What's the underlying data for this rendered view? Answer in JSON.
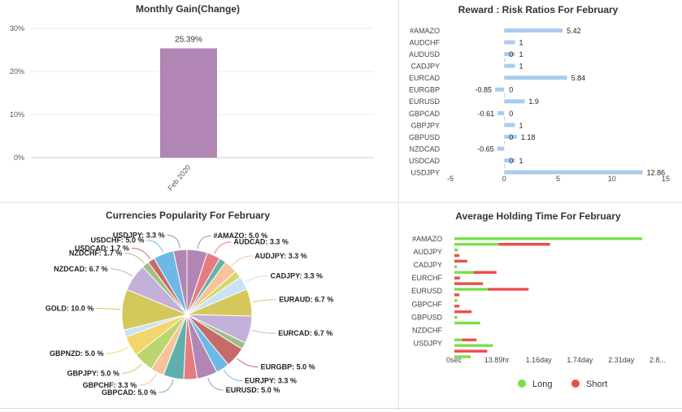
{
  "chart_data": [
    {
      "id": "monthly",
      "type": "bar",
      "title": "Monthly Gain(Change)",
      "categories": [
        "Feb 2020"
      ],
      "values": [
        25.39
      ],
      "value_labels": [
        "25.39%"
      ],
      "y_ticks": [
        "0%",
        "10%",
        "20%",
        "30%"
      ],
      "ylim": [
        0,
        30
      ],
      "grid": true,
      "colors": {
        "bar": "#b286b4",
        "grid": "#e8e8e8"
      }
    },
    {
      "id": "reward",
      "type": "bar",
      "orientation": "horizontal",
      "title": "Reward : Risk Ratios For February",
      "categories": [
        "#AMAZO",
        "AUDCHF",
        "AUDUSD",
        "CADJPY",
        "EURCAD",
        "EURGBP",
        "EURUSD",
        "GBPCAD",
        "GBPJPY",
        "GBPUSD",
        "NZDCAD",
        "USDCAD",
        "USDJPY"
      ],
      "series": [
        {
          "values": [
            5.42,
            1,
            1,
            1,
            5.84,
            -0.85,
            1.9,
            -0.61,
            1,
            1.18,
            -0.65,
            1,
            12.86
          ],
          "labels": [
            "5.42",
            "1",
            "1",
            "1",
            "5.84",
            "-0.85",
            "1.9",
            "-0.61",
            "1",
            "1.18",
            "-0.65",
            "1",
            "12.86"
          ]
        },
        {
          "values": [
            null,
            null,
            0,
            null,
            null,
            0,
            null,
            0,
            null,
            0,
            null,
            0,
            null
          ],
          "labels": [
            "",
            "",
            "0",
            "",
            "",
            "0",
            "",
            "0",
            "",
            "0",
            "",
            "0",
            ""
          ]
        }
      ],
      "x_ticks": [
        "-5",
        "0",
        "5",
        "10",
        "15"
      ],
      "xlim": [
        -5,
        15
      ],
      "colors": {
        "bar": "#a8cdee"
      }
    },
    {
      "id": "popularity",
      "type": "pie",
      "title": "Currencies Popularity For February",
      "slices": [
        {
          "label": "#AMAZO: 5.0 %",
          "value": 5.0,
          "color": "#b286b4"
        },
        {
          "label": "AUDCAD: 3.3 %",
          "value": 3.3,
          "color": "#e57c80"
        },
        {
          "label": "",
          "value": 1.7,
          "color": "#66b3a7"
        },
        {
          "label": "AUDJPY: 3.3 %",
          "value": 3.3,
          "color": "#f8c39b"
        },
        {
          "label": "",
          "value": 1.7,
          "color": "#d4d86a"
        },
        {
          "label": "CADJPY: 3.3 %",
          "value": 3.3,
          "color": "#c8e2f6"
        },
        {
          "label": "EURAUD: 6.7 %",
          "value": 6.7,
          "color": "#d4c85c"
        },
        {
          "label": "EURCAD: 6.7 %",
          "value": 6.7,
          "color": "#c2b0d8"
        },
        {
          "label": "",
          "value": 1.7,
          "color": "#9fbf86"
        },
        {
          "label": "EURGBP: 5.0 %",
          "value": 5.0,
          "color": "#c76a6a"
        },
        {
          "label": "EURJPY: 3.3 %",
          "value": 3.3,
          "color": "#6cb9e6"
        },
        {
          "label": "EURUSD: 5.0 %",
          "value": 5.0,
          "color": "#b286b4"
        },
        {
          "label": "",
          "value": 3.3,
          "color": "#e57c80"
        },
        {
          "label": "GBPCAD: 5.0 %",
          "value": 5.0,
          "color": "#5fb0ad"
        },
        {
          "label": "GBPCHF: 3.3 %",
          "value": 3.3,
          "color": "#f8c39b"
        },
        {
          "label": "GBPJPY: 5.0 %",
          "value": 5.0,
          "color": "#bcd66e"
        },
        {
          "label": "GBPNZD: 5.0 %",
          "value": 5.0,
          "color": "#f3d56e"
        },
        {
          "label": "",
          "value": 1.7,
          "color": "#c8e2f6"
        },
        {
          "label": "GOLD: 10.0 %",
          "value": 10.0,
          "color": "#d4c85c"
        },
        {
          "label": "NZDCAD: 6.7 %",
          "value": 6.7,
          "color": "#c2b0d8"
        },
        {
          "label": "NZDCHF: 1.7 %",
          "value": 1.7,
          "color": "#9fbf86"
        },
        {
          "label": "USDCAD: 1.7 %",
          "value": 1.7,
          "color": "#c76a6a"
        },
        {
          "label": "USDCHF: 5.0 %",
          "value": 5.0,
          "color": "#6cb9e6"
        },
        {
          "label": "USDJPY: 3.3 %",
          "value": 3.3,
          "color": "#b286b4"
        }
      ]
    },
    {
      "id": "holding",
      "type": "bar",
      "orientation": "horizontal",
      "title": "Average Holding Time For February",
      "category_labels": [
        "#AMAZO",
        "AUDJPY",
        "CADJPY",
        "EURCHF",
        "EURUSD",
        "GBPCHF",
        "GBPUSD",
        "NZDCHF",
        "USDJPY"
      ],
      "rows": [
        {
          "long": 2.63,
          "short": 0
        },
        {
          "long": 0.63,
          "short": 0.72
        },
        {
          "long": 0.05,
          "short": 0
        },
        {
          "long": 0.04,
          "short": 0.07
        },
        {
          "long": 0.02,
          "short": 0.18
        },
        {
          "long": 0.02,
          "short": 0
        },
        {
          "long": 0.28,
          "short": 0.32
        },
        {
          "long": 0.05,
          "short": 0.08
        },
        {
          "long": 0.05,
          "short": 0.4
        },
        {
          "long": 0.48,
          "short": 0.57
        },
        {
          "long": 0.02,
          "short": 0.07
        },
        {
          "long": 0.04,
          "short": 0
        },
        {
          "long": 0.02,
          "short": 0.07
        },
        {
          "long": 0.02,
          "short": 0.24
        },
        {
          "long": 0.04,
          "short": 0
        },
        {
          "long": 0.36,
          "short": 0
        },
        {
          "long": 0,
          "short": 0
        },
        {
          "long": 0,
          "short": 0
        },
        {
          "long": 0.12,
          "short": 0.2
        },
        {
          "long": 0.54,
          "short": 0
        },
        {
          "long": 0.03,
          "short": 0.46
        },
        {
          "long": 0.23,
          "short": 0
        }
      ],
      "x_ticks": [
        "0sec",
        "13.89hr",
        "1.16day",
        "1.74day",
        "2.31day",
        "2.8..."
      ],
      "xlim": [
        0,
        2.89
      ],
      "legend": [
        {
          "name": "Long",
          "color": "#78e04a"
        },
        {
          "name": "Short",
          "color": "#ef4b4b"
        }
      ],
      "legend_position": "bottom"
    }
  ]
}
